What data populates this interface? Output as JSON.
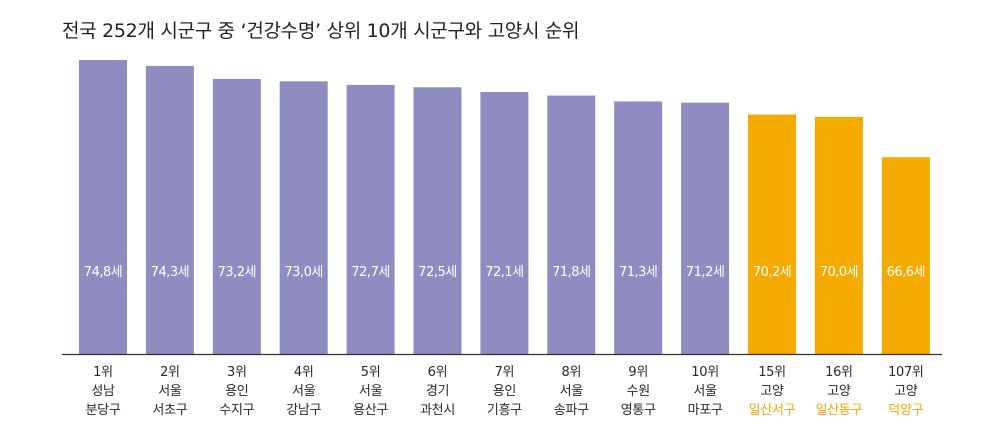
{
  "title": "전국 252개 시군구 중 ‘건강수명’ 상위 10개 시군구와 고양시 순위",
  "colors": {
    "primary": "#8e8cc0",
    "highlight": "#f5aa00"
  },
  "chart_data": {
    "type": "bar",
    "title": "전국 252개 시군구 중 ‘건강수명’ 상위 10개 시군구와 고양시 순위",
    "value_suffix": "세",
    "ylim": [
      50,
      76
    ],
    "categories": [
      {
        "rank": "1위",
        "region": "성남",
        "district": "분당구",
        "highlight": false
      },
      {
        "rank": "2위",
        "region": "서울",
        "district": "서초구",
        "highlight": false
      },
      {
        "rank": "3위",
        "region": "용인",
        "district": "수지구",
        "highlight": false
      },
      {
        "rank": "4위",
        "region": "서울",
        "district": "강남구",
        "highlight": false
      },
      {
        "rank": "5위",
        "region": "서울",
        "district": "용산구",
        "highlight": false
      },
      {
        "rank": "6위",
        "region": "경기",
        "district": "과천시",
        "highlight": false
      },
      {
        "rank": "7위",
        "region": "용인",
        "district": "기흥구",
        "highlight": false
      },
      {
        "rank": "8위",
        "region": "서울",
        "district": "송파구",
        "highlight": false
      },
      {
        "rank": "9위",
        "region": "수원",
        "district": "영통구",
        "highlight": false
      },
      {
        "rank": "10위",
        "region": "서울",
        "district": "마포구",
        "highlight": false
      },
      {
        "rank": "15위",
        "region": "고양",
        "district": "일산서구",
        "highlight": true
      },
      {
        "rank": "16위",
        "region": "고양",
        "district": "일산동구",
        "highlight": true
      },
      {
        "rank": "107위",
        "region": "고양",
        "district": "덕양구",
        "highlight": true
      }
    ],
    "values": [
      74.8,
      74.3,
      73.2,
      73.0,
      72.7,
      72.5,
      72.1,
      71.8,
      71.3,
      71.2,
      70.2,
      70.0,
      66.6
    ],
    "value_labels": [
      "74,8세",
      "74,3세",
      "73,2세",
      "73,0세",
      "72,7세",
      "72,5세",
      "72,1세",
      "71,8세",
      "71,3세",
      "71,2세",
      "70,2세",
      "70,0세",
      "66,6세"
    ],
    "grid": false,
    "legend": "none"
  }
}
